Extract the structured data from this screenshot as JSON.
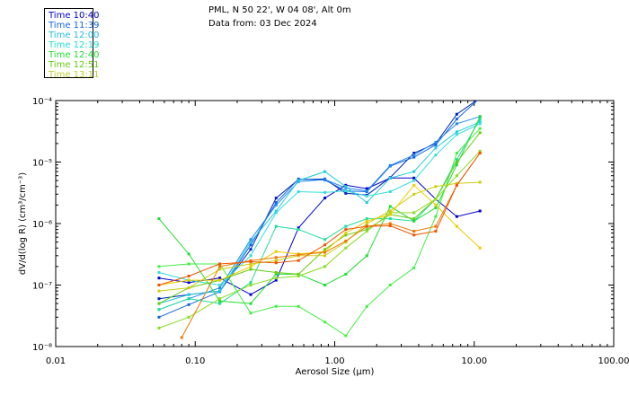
{
  "header": {
    "location": "PML, N 50 22', W 04 08', Alt 0m",
    "date_line": "Data from: 03 Dec 2024"
  },
  "chart_data": {
    "type": "line",
    "xscale": "log",
    "yscale": "log",
    "xlim": [
      0.01,
      100
    ],
    "ylim": [
      1e-08,
      0.0001
    ],
    "xticks": [
      "0.01",
      "0.10",
      "1.00",
      "10.00",
      "100.00"
    ],
    "yticks": [
      "10⁻⁸",
      "10⁻⁷",
      "10⁻⁶",
      "10⁻⁵",
      "10⁻⁴"
    ],
    "xlabel": "Aerosol Size (μm)",
    "ylabel": "dV/d(log R) (cm³/cm⁻³)",
    "legend_position": "top-left",
    "series": [
      {
        "name": "Time 10:40",
        "color": "#0000cc",
        "x": [
          0.055,
          0.09,
          0.15,
          0.25,
          0.38,
          0.55,
          0.85,
          1.2,
          1.7,
          2.5,
          3.7,
          5.3,
          7.5,
          11
        ],
        "y": [
          1.3e-07,
          1.1e-07,
          1.3e-07,
          7e-08,
          1.2e-07,
          8.5e-07,
          2.6e-06,
          4.2e-06,
          3.7e-06,
          5.5e-06,
          5.5e-06,
          2.5e-06,
          1.3e-06,
          1.6e-06
        ]
      },
      {
        "name": "Time 10:40",
        "color": "#0022bb",
        "x": [
          0.055,
          0.09,
          0.15,
          0.25,
          0.38,
          0.55,
          0.85,
          1.2,
          1.7,
          2.5,
          3.7,
          5.3,
          7.5,
          11
        ],
        "y": [
          6e-08,
          7e-08,
          8e-08,
          3.8e-07,
          2.6e-06,
          5.2e-06,
          5.3e-06,
          3.1e-06,
          2.9e-06,
          5.6e-06,
          1.4e-05,
          2e-05,
          6e-05,
          0.00011
        ]
      },
      {
        "name": "Time 11:39",
        "color": "#1166dd",
        "x": [
          0.055,
          0.09,
          0.15,
          0.25,
          0.38,
          0.55,
          0.85,
          1.2,
          1.7,
          2.5,
          3.7,
          5.3,
          7.5,
          11
        ],
        "y": [
          3e-08,
          4.8e-08,
          7.8e-08,
          4.5e-07,
          2.2e-06,
          5.3e-06,
          5.1e-06,
          3.4e-06,
          3.3e-06,
          8.6e-06,
          1.2e-05,
          1.9e-05,
          5e-05,
          0.00011
        ]
      },
      {
        "name": "Time 11:39",
        "color": "#2288ee",
        "x": [
          0.055,
          0.09,
          0.15,
          0.25,
          0.38,
          0.55,
          0.85,
          1.2,
          1.7,
          2.5,
          3.7,
          5.3,
          7.5,
          11
        ],
        "y": [
          4e-08,
          6e-08,
          9e-08,
          5.5e-07,
          2e-06,
          4.8e-06,
          5.2e-06,
          3.8e-06,
          3.4e-06,
          8.8e-06,
          1.3e-05,
          2.1e-05,
          4.2e-05,
          5.5e-05
        ]
      },
      {
        "name": "Time 12:00",
        "color": "#22ccdd",
        "x": [
          0.055,
          0.09,
          0.15,
          0.25,
          0.38,
          0.55,
          0.85,
          1.2,
          1.7,
          2.5,
          3.7,
          5.3,
          7.5,
          11
        ],
        "y": [
          5e-08,
          7e-08,
          8e-08,
          5e-07,
          1.6e-06,
          5e-06,
          7e-06,
          4e-06,
          2.2e-06,
          5.5e-06,
          7e-06,
          1.7e-05,
          3.1e-05,
          4.5e-05
        ]
      },
      {
        "name": "Time 12:00",
        "color": "#33dddd",
        "x": [
          0.055,
          0.09,
          0.15,
          0.25,
          0.38,
          0.55,
          0.85,
          1.2,
          1.7,
          2.5,
          3.7,
          5.3,
          7.5,
          11
        ],
        "y": [
          1.6e-07,
          1.2e-07,
          1e-07,
          3e-07,
          1.5e-06,
          3.3e-06,
          3.2e-06,
          3.4e-06,
          2.8e-06,
          3.3e-06,
          5e-06,
          1.3e-05,
          2.8e-05,
          4.2e-05
        ]
      },
      {
        "name": "Time 12:19",
        "color": "#22dd99",
        "x": [
          0.055,
          0.09,
          0.15,
          0.25,
          0.38,
          0.55,
          0.85,
          1.2,
          1.7,
          2.5,
          3.7,
          5.3,
          7.5,
          11
        ],
        "y": [
          4e-08,
          6e-08,
          5e-08,
          1.1e-07,
          9e-07,
          8e-07,
          5.5e-07,
          9e-07,
          1.2e-06,
          1.2e-06,
          1.1e-06,
          2.5e-06,
          1.1e-05,
          5e-05
        ]
      },
      {
        "name": "Time 12:40",
        "color": "#22dd33",
        "x": [
          0.055,
          0.09,
          0.15,
          0.25,
          0.38,
          0.55,
          0.85,
          1.2,
          1.7,
          2.5,
          3.7,
          5.3,
          7.5,
          11
        ],
        "y": [
          1.2e-06,
          3.2e-07,
          5.5e-08,
          5e-08,
          1.5e-07,
          1.5e-07,
          1e-07,
          1.5e-07,
          3e-07,
          1.9e-06,
          1.1e-06,
          1.8e-06,
          9e-06,
          5.5e-05
        ]
      },
      {
        "name": "Time 12:40",
        "color": "#44ee44",
        "x": [
          0.055,
          0.09,
          0.15,
          0.25,
          0.38,
          0.55,
          0.85,
          1.2,
          1.7,
          2.5,
          3.7,
          5.3,
          7.5,
          11
        ],
        "y": [
          2e-07,
          2.2e-07,
          2.2e-07,
          3.5e-08,
          4.5e-08,
          4.5e-08,
          2.5e-08,
          1.5e-08,
          4.5e-08,
          1e-07,
          1.9e-07,
          1.3e-06,
          1.4e-05,
          3.5e-05
        ]
      },
      {
        "name": "Time 12:51",
        "color": "#66cc11",
        "x": [
          0.055,
          0.09,
          0.15,
          0.25,
          0.38,
          0.55,
          0.85,
          1.2,
          1.7,
          2.5,
          3.7,
          5.3,
          7.5,
          11
        ],
        "y": [
          5e-08,
          9e-08,
          1.2e-07,
          1.8e-07,
          1.6e-07,
          1.5e-07,
          3.8e-07,
          6.5e-07,
          8e-07,
          1.4e-06,
          1.2e-06,
          2.5e-06,
          1e-05,
          3e-05
        ]
      },
      {
        "name": "Time 12:51",
        "color": "#88dd22",
        "x": [
          0.055,
          0.09,
          0.15,
          0.25,
          0.38,
          0.55,
          0.85,
          1.2,
          1.7,
          2.5,
          3.7,
          5.3,
          7.5,
          11
        ],
        "y": [
          2e-08,
          3e-08,
          6e-08,
          1e-07,
          1.3e-07,
          1.4e-07,
          2e-07,
          4e-07,
          7.5e-07,
          1.5e-06,
          1.5e-06,
          2.5e-06,
          6e-06,
          1.5e-05
        ]
      },
      {
        "name": "Time 13:11",
        "color": "#cccc11",
        "x": [
          0.055,
          0.09,
          0.15,
          0.25,
          0.38,
          0.55,
          0.85,
          1.2,
          1.7,
          2.5,
          3.7,
          5.3,
          7.5,
          11
        ],
        "y": [
          8e-08,
          9e-08,
          1.8e-07,
          2.2e-07,
          2.5e-07,
          3e-07,
          3e-07,
          5e-07,
          1e-06,
          1.6e-06,
          3e-06,
          4e-06,
          4.5e-06,
          4.7e-06
        ]
      },
      {
        "name": "Time 13:11",
        "color": "#eecc00",
        "x": [
          0.055,
          0.09,
          0.15,
          0.25,
          0.38,
          0.55,
          0.85,
          1.2,
          1.7,
          2.5,
          3.7,
          5.3,
          7.5,
          11
        ],
        "y": [
          1e-07,
          1.2e-07,
          1.2e-07,
          2e-07,
          3.5e-07,
          3.2e-07,
          3.5e-07,
          7e-07,
          1.1e-06,
          1.4e-06,
          4.2e-06,
          2e-06,
          9e-07,
          4e-07
        ]
      },
      {
        "name": "Time 13:11",
        "color": "#ee7700",
        "x": [
          0.08,
          0.15,
          0.25,
          0.38,
          0.55,
          0.85,
          1.2,
          1.7,
          2.5,
          3.7,
          5.3,
          7.5,
          11
        ],
        "y": [
          1.4e-08,
          2e-07,
          2.5e-07,
          2.8e-07,
          3.1e-07,
          3.4e-07,
          5.2e-07,
          9e-07,
          1e-06,
          7.5e-07,
          9e-07,
          4.2e-06,
          1.4e-05
        ]
      },
      {
        "name": "Time 13:11",
        "color": "#ee5500",
        "x": [
          0.055,
          0.09,
          0.15,
          0.25,
          0.38,
          0.55,
          0.85,
          1.2,
          1.7,
          2.5,
          3.7,
          5.3,
          7.5,
          11
        ],
        "y": [
          1e-07,
          1.4e-07,
          2.2e-07,
          2.4e-07,
          2.3e-07,
          2.5e-07,
          4.5e-07,
          8e-07,
          9e-07,
          9.2e-07,
          6.5e-07,
          7.5e-07,
          4.2e-06,
          1.4e-05
        ]
      }
    ]
  },
  "legend": [
    {
      "label": "Time 10:40",
      "color": "#0000cc"
    },
    {
      "label": "Time 11:39",
      "color": "#1166dd"
    },
    {
      "label": "Time 12:00",
      "color": "#22bbdd"
    },
    {
      "label": "Time 12:19",
      "color": "#22ddcc"
    },
    {
      "label": "Time 12:40",
      "color": "#22dd33"
    },
    {
      "label": "Time 12:51",
      "color": "#66cc11"
    },
    {
      "label": "Time 13:11",
      "color": "#bbcc33"
    }
  ]
}
